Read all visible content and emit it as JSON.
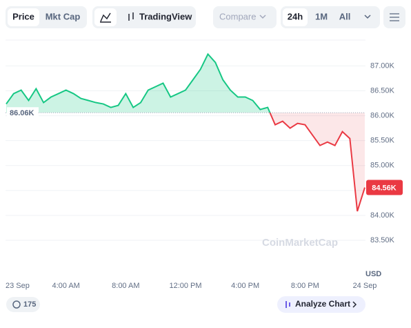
{
  "ui": {
    "price_tab": "Price",
    "mktcap_tab": "Mkt Cap",
    "tradingview": "TradingView",
    "compare": "Compare",
    "range_24h": "24h",
    "range_1m": "1M",
    "range_all": "All",
    "count": "175",
    "analyze": "Analyze Chart",
    "watermark": "CoinMarketCap"
  },
  "chart_data": {
    "type": "line",
    "y_unit": "USD",
    "categories": [
      "23 Sep",
      null,
      null,
      null,
      null,
      null,
      null,
      null,
      "4:00 AM",
      null,
      null,
      null,
      null,
      null,
      null,
      null,
      "8:00 AM",
      null,
      null,
      null,
      null,
      null,
      null,
      null,
      "12:00 PM",
      null,
      null,
      null,
      null,
      null,
      null,
      null,
      "4:00 PM",
      null,
      null,
      null,
      null,
      null,
      null,
      null,
      "8:00 PM",
      null,
      null,
      null,
      null,
      null,
      null,
      null,
      "24 Sep"
    ],
    "values": [
      86236,
      86444,
      86514,
      86306,
      86542,
      86264,
      86375,
      86444,
      86514,
      86444,
      86347,
      86306,
      86264,
      86236,
      86167,
      86208,
      86444,
      86167,
      86264,
      86514,
      86583,
      86653,
      86375,
      86444,
      86514,
      86722,
      86931,
      87236,
      87069,
      86722,
      86514,
      86375,
      86375,
      86306,
      86125,
      86167,
      85819,
      85889,
      85750,
      85847,
      85819,
      85611,
      85403,
      85472,
      85403,
      85681,
      85542,
      84083,
      84560
    ],
    "value_labels": [
      null,
      null,
      null,
      null,
      null,
      null,
      null,
      null,
      null,
      null,
      null,
      null,
      null,
      null,
      null,
      null,
      null,
      null,
      null,
      null,
      null,
      null,
      null,
      null,
      null,
      null,
      null,
      null,
      null,
      null,
      null,
      null,
      null,
      null,
      null,
      null,
      null,
      null,
      null,
      null,
      null,
      null,
      null,
      null,
      null,
      null,
      null,
      null,
      "84.56K"
    ],
    "baseline": {
      "value": 86060,
      "label": "86.06K"
    },
    "up_color": "#16c784",
    "down_color": "#ea3943",
    "ylim": [
      82780,
      87560
    ],
    "yticks": [
      {
        "value": 83500,
        "label": "83.50K"
      },
      {
        "value": 84000,
        "label": "84.00K"
      },
      {
        "value": 84500,
        "label": "84.50K"
      },
      {
        "value": 85000,
        "label": "85.00K"
      },
      {
        "value": 85500,
        "label": "85.50K"
      },
      {
        "value": 86000,
        "label": "86.00K"
      },
      {
        "value": 86500,
        "label": "86.50K"
      },
      {
        "value": 87000,
        "label": "87.00K"
      }
    ],
    "grid": true
  }
}
